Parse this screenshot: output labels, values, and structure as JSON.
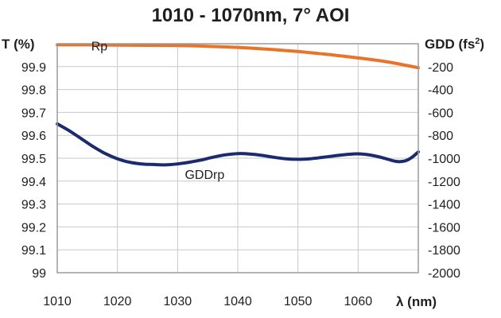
{
  "chart_data": {
    "type": "line",
    "title": "1010 - 1070nm, 7° AOI",
    "xlabel": "λ (nm)",
    "ylabel_left": "T (%)",
    "ylabel_right_main": "GDD (fs",
    "ylabel_right_sup": "2",
    "ylabel_right_end": ")",
    "xlim": [
      1010,
      1070
    ],
    "ylim_left": [
      99,
      100
    ],
    "ylim_right": [
      -2000,
      0
    ],
    "x_ticks": [
      1010,
      1020,
      1030,
      1040,
      1050,
      1060
    ],
    "x_tick_labels": [
      "1010",
      "1020",
      "1030",
      "1040",
      "1050",
      "1060"
    ],
    "y_left_ticks": [
      99,
      99.1,
      99.2,
      99.3,
      99.4,
      99.5,
      99.6,
      99.7,
      99.8,
      99.9
    ],
    "y_left_tick_labels": [
      "99",
      "99.1",
      "99.2",
      "99.3",
      "99.4",
      "99.5",
      "99.6",
      "99.7",
      "99.8",
      "99.9"
    ],
    "y_right_ticks": [
      -2000,
      -1800,
      -1600,
      -1400,
      -1200,
      -1000,
      -800,
      -600,
      -400,
      -200
    ],
    "y_right_tick_labels": [
      "-2000",
      "-1800",
      "-1600",
      "-1400",
      "-1200",
      "-1000",
      "-800",
      "-600",
      "-400",
      "-200"
    ],
    "grid": true,
    "series": [
      {
        "name": "Rp",
        "axis": "left",
        "color": "#e8742a",
        "label_at": [
          1017,
          99.97
        ],
        "x": [
          1010,
          1015,
          1020,
          1025,
          1030,
          1035,
          1040,
          1045,
          1050,
          1055,
          1060,
          1065,
          1070
        ],
        "y": [
          99.995,
          99.995,
          99.994,
          99.993,
          99.992,
          99.989,
          99.984,
          99.976,
          99.966,
          99.953,
          99.938,
          99.92,
          99.895
        ]
      },
      {
        "name": "GDDrp",
        "axis": "right",
        "color": "#1c2a6e",
        "label_at": [
          1034.5,
          -1180
        ],
        "x": [
          1010,
          1012,
          1014,
          1016,
          1018,
          1020,
          1022,
          1024,
          1026,
          1028,
          1030,
          1032,
          1034,
          1036,
          1038,
          1040,
          1042,
          1044,
          1046,
          1048,
          1050,
          1052,
          1054,
          1056,
          1058,
          1060,
          1062,
          1064,
          1066,
          1067,
          1068,
          1069,
          1070
        ],
        "y": [
          -700,
          -760,
          -830,
          -900,
          -960,
          -1005,
          -1035,
          -1050,
          -1055,
          -1058,
          -1050,
          -1035,
          -1015,
          -990,
          -970,
          -960,
          -963,
          -975,
          -992,
          -1005,
          -1010,
          -1005,
          -993,
          -980,
          -968,
          -962,
          -972,
          -995,
          -1025,
          -1030,
          -1020,
          -990,
          -945
        ]
      }
    ]
  }
}
